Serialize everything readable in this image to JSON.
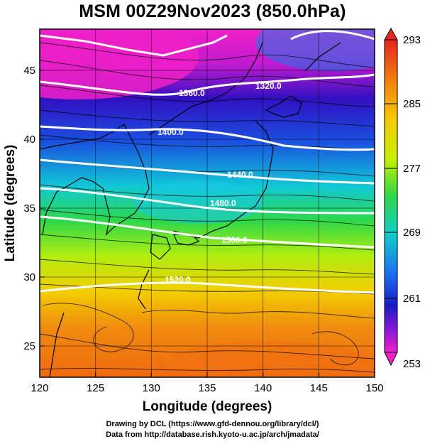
{
  "title": "MSM 00Z29Nov2023 (850.0hPa)",
  "axes": {
    "xlabel": "Longitude (degrees)",
    "ylabel": "Latitude  (degrees)",
    "xticks": [
      "120",
      "125",
      "130",
      "135",
      "140",
      "145",
      "150"
    ],
    "yticks": [
      "25",
      "30",
      "35",
      "40",
      "45"
    ]
  },
  "colorbar": {
    "labels": [
      "293",
      "285",
      "277",
      "269",
      "261",
      "253"
    ],
    "colors": [
      "#e8241e",
      "#f07a10",
      "#f7c800",
      "#c8f000",
      "#2ed84a",
      "#0fd0c8",
      "#1a6ff0",
      "#1a1ac8",
      "#8a18d8",
      "#f020c8"
    ]
  },
  "contours": {
    "labels": [
      "1320.0",
      "1360.0",
      "1400.0",
      "1440.0",
      "1480.0",
      "1500.0",
      "1520.0"
    ]
  },
  "credits": {
    "line1": "Drawing by DCL (https://www.gfd-dennou.org/library/dcl/)",
    "line2": "Data from http://database.rish.kyoto-u.ac.jp/arch/jmadata/"
  }
}
